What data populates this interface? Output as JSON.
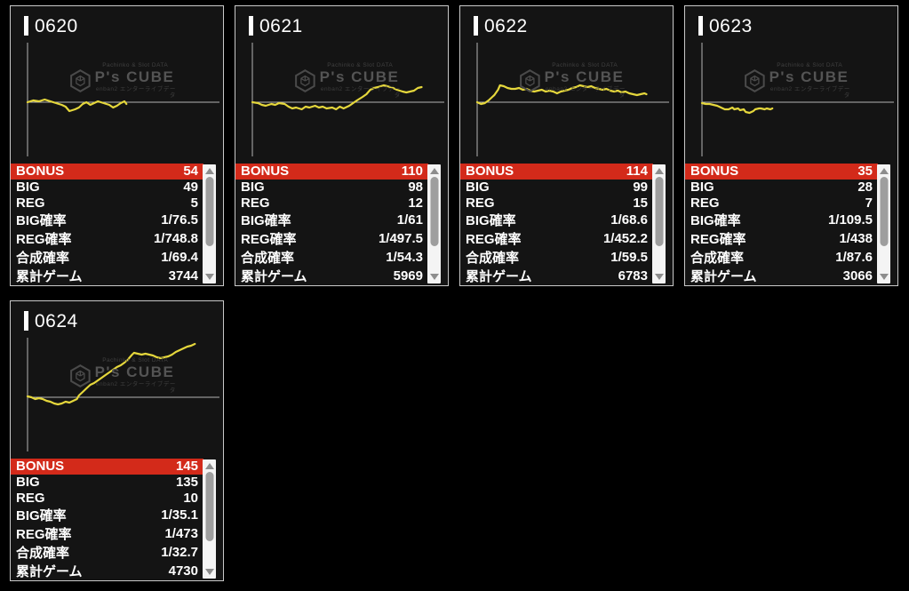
{
  "watermark": {
    "tagline": "Pachinko & Slot DATA",
    "brand": "P's CUBE",
    "subline": "enban2 エンターライブデータ",
    "icon": "cube-logo-icon"
  },
  "icons": {
    "scroll_up": "up-triangle-icon",
    "scroll_down": "down-triangle-icon"
  },
  "colors": {
    "background": "#000000",
    "card_bg": "#141414",
    "card_border": "#c9c9c9",
    "accent_red": "#d32a1a",
    "line_yellow": "#e5d73c",
    "axis": "#b4b4b4",
    "text": "#ffffff",
    "watermark": "#4a4a4a",
    "scroll_track": "#f4f4f4",
    "scroll_thumb": "#9e9e9e",
    "scroll_arrow": "#8d8d8d"
  },
  "table_labels": [
    "BONUS",
    "BIG",
    "REG",
    "BIG確率",
    "REG確率",
    "合成確率",
    "累計ゲーム"
  ],
  "machines": [
    {
      "id": "0620",
      "values": [
        "54",
        "49",
        "5",
        "1/76.5",
        "1/748.8",
        "1/69.4",
        "3744"
      ],
      "chart": {
        "type": "line",
        "points": [
          [
            0.0,
            0
          ],
          [
            0.03,
            -2
          ],
          [
            0.06,
            -1
          ],
          [
            0.09,
            -3
          ],
          [
            0.12,
            -1
          ],
          [
            0.15,
            1
          ],
          [
            0.18,
            3
          ],
          [
            0.2,
            5
          ],
          [
            0.22,
            10
          ],
          [
            0.25,
            8
          ],
          [
            0.27,
            6
          ],
          [
            0.29,
            2
          ],
          [
            0.31,
            0
          ],
          [
            0.33,
            3
          ],
          [
            0.35,
            1
          ],
          [
            0.37,
            -1
          ],
          [
            0.4,
            1
          ],
          [
            0.43,
            3
          ],
          [
            0.45,
            6
          ],
          [
            0.47,
            4
          ],
          [
            0.49,
            1
          ],
          [
            0.51,
            -1
          ],
          [
            0.52,
            2
          ]
        ]
      }
    },
    {
      "id": "0621",
      "values": [
        "110",
        "98",
        "12",
        "1/61",
        "1/497.5",
        "1/54.3",
        "5969"
      ],
      "chart": {
        "type": "line",
        "points": [
          [
            0.0,
            0
          ],
          [
            0.03,
            1
          ],
          [
            0.05,
            3
          ],
          [
            0.07,
            4
          ],
          [
            0.1,
            2
          ],
          [
            0.12,
            3
          ],
          [
            0.14,
            1
          ],
          [
            0.17,
            2
          ],
          [
            0.19,
            5
          ],
          [
            0.21,
            7
          ],
          [
            0.23,
            6
          ],
          [
            0.26,
            8
          ],
          [
            0.28,
            5
          ],
          [
            0.3,
            6
          ],
          [
            0.33,
            4
          ],
          [
            0.35,
            6
          ],
          [
            0.37,
            5
          ],
          [
            0.39,
            7
          ],
          [
            0.42,
            6
          ],
          [
            0.44,
            8
          ],
          [
            0.46,
            5
          ],
          [
            0.48,
            7
          ],
          [
            0.51,
            4
          ],
          [
            0.53,
            1
          ],
          [
            0.55,
            -2
          ],
          [
            0.58,
            -6
          ],
          [
            0.6,
            -9
          ],
          [
            0.62,
            -14
          ],
          [
            0.64,
            -16
          ],
          [
            0.66,
            -17
          ],
          [
            0.69,
            -19
          ],
          [
            0.71,
            -18
          ],
          [
            0.74,
            -16
          ],
          [
            0.76,
            -14
          ],
          [
            0.79,
            -12
          ],
          [
            0.81,
            -11
          ],
          [
            0.83,
            -12
          ],
          [
            0.85,
            -13
          ],
          [
            0.87,
            -16
          ],
          [
            0.89,
            -17
          ]
        ]
      }
    },
    {
      "id": "0622",
      "values": [
        "114",
        "99",
        "15",
        "1/68.6",
        "1/452.2",
        "1/59.5",
        "6783"
      ],
      "chart": {
        "type": "line",
        "points": [
          [
            0.0,
            0
          ],
          [
            0.02,
            2
          ],
          [
            0.04,
            1
          ],
          [
            0.06,
            -2
          ],
          [
            0.08,
            -6
          ],
          [
            0.09,
            -8
          ],
          [
            0.11,
            -14
          ],
          [
            0.12,
            -19
          ],
          [
            0.14,
            -18
          ],
          [
            0.16,
            -16
          ],
          [
            0.18,
            -15
          ],
          [
            0.2,
            -15
          ],
          [
            0.22,
            -16
          ],
          [
            0.24,
            -14
          ],
          [
            0.26,
            -15
          ],
          [
            0.28,
            -13
          ],
          [
            0.3,
            -12
          ],
          [
            0.32,
            -13
          ],
          [
            0.34,
            -14
          ],
          [
            0.36,
            -12
          ],
          [
            0.38,
            -13
          ],
          [
            0.4,
            -12
          ],
          [
            0.42,
            -10
          ],
          [
            0.44,
            -12
          ],
          [
            0.46,
            -13
          ],
          [
            0.48,
            -14
          ],
          [
            0.5,
            -16
          ],
          [
            0.52,
            -17
          ],
          [
            0.54,
            -19
          ],
          [
            0.56,
            -18
          ],
          [
            0.58,
            -17
          ],
          [
            0.6,
            -18
          ],
          [
            0.62,
            -16
          ],
          [
            0.64,
            -15
          ],
          [
            0.66,
            -14
          ],
          [
            0.68,
            -15
          ],
          [
            0.7,
            -13
          ],
          [
            0.72,
            -12
          ],
          [
            0.74,
            -13
          ],
          [
            0.76,
            -11
          ],
          [
            0.78,
            -12
          ],
          [
            0.8,
            -10
          ],
          [
            0.82,
            -9
          ],
          [
            0.84,
            -8
          ],
          [
            0.86,
            -9
          ],
          [
            0.88,
            -10
          ],
          [
            0.89,
            -9
          ]
        ]
      }
    },
    {
      "id": "0623",
      "values": [
        "35",
        "28",
        "7",
        "1/109.5",
        "1/438",
        "1/87.6",
        "3066"
      ],
      "chart": {
        "type": "line",
        "points": [
          [
            0.0,
            1
          ],
          [
            0.02,
            2
          ],
          [
            0.04,
            2
          ],
          [
            0.06,
            3
          ],
          [
            0.08,
            4
          ],
          [
            0.09,
            5
          ],
          [
            0.11,
            7
          ],
          [
            0.12,
            8
          ],
          [
            0.14,
            8
          ],
          [
            0.16,
            6
          ],
          [
            0.17,
            8
          ],
          [
            0.19,
            7
          ],
          [
            0.2,
            9
          ],
          [
            0.22,
            8
          ],
          [
            0.23,
            11
          ],
          [
            0.25,
            12
          ],
          [
            0.27,
            10
          ],
          [
            0.28,
            8
          ],
          [
            0.3,
            7
          ],
          [
            0.31,
            7
          ],
          [
            0.33,
            8
          ],
          [
            0.34,
            7
          ],
          [
            0.36,
            8
          ],
          [
            0.37,
            7
          ]
        ]
      }
    },
    {
      "id": "0624",
      "values": [
        "145",
        "135",
        "10",
        "1/35.1",
        "1/473",
        "1/32.7",
        "4730"
      ],
      "chart": {
        "type": "line",
        "points": [
          [
            0.0,
            -1
          ],
          [
            0.02,
            0
          ],
          [
            0.04,
            2
          ],
          [
            0.06,
            1
          ],
          [
            0.08,
            2
          ],
          [
            0.1,
            4
          ],
          [
            0.12,
            5
          ],
          [
            0.14,
            7
          ],
          [
            0.16,
            8
          ],
          [
            0.18,
            7
          ],
          [
            0.2,
            5
          ],
          [
            0.22,
            6
          ],
          [
            0.24,
            4
          ],
          [
            0.26,
            2
          ],
          [
            0.27,
            -2
          ],
          [
            0.29,
            -6
          ],
          [
            0.31,
            -10
          ],
          [
            0.33,
            -14
          ],
          [
            0.35,
            -16
          ],
          [
            0.37,
            -19
          ],
          [
            0.39,
            -22
          ],
          [
            0.41,
            -25
          ],
          [
            0.43,
            -28
          ],
          [
            0.45,
            -31
          ],
          [
            0.47,
            -34
          ],
          [
            0.49,
            -36
          ],
          [
            0.51,
            -39
          ],
          [
            0.53,
            -43
          ],
          [
            0.55,
            -48
          ],
          [
            0.56,
            -50
          ],
          [
            0.58,
            -49
          ],
          [
            0.6,
            -48
          ],
          [
            0.62,
            -49
          ],
          [
            0.64,
            -48
          ],
          [
            0.66,
            -47
          ],
          [
            0.68,
            -45
          ],
          [
            0.7,
            -44
          ],
          [
            0.72,
            -45
          ],
          [
            0.74,
            -46
          ],
          [
            0.76,
            -48
          ],
          [
            0.78,
            -51
          ],
          [
            0.8,
            -53
          ],
          [
            0.82,
            -55
          ],
          [
            0.84,
            -57
          ],
          [
            0.86,
            -58
          ],
          [
            0.88,
            -60
          ]
        ]
      }
    }
  ]
}
